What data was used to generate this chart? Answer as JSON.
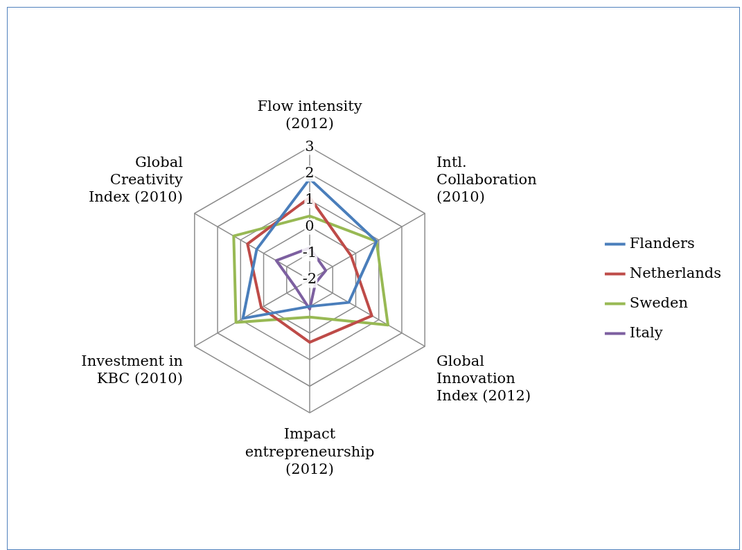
{
  "chart_data": {
    "type": "radar",
    "categories": [
      "Flow intensity (2012)",
      "Intl. Collaboration (2010)",
      "Global Innovation Index (2012)",
      "Impact entrepreneurship (2012)",
      "Investment in KBC (2010)",
      "Global Creativity Index (2010)"
    ],
    "series": [
      {
        "name": "Flanders",
        "color": "#4a7ebb",
        "values": [
          1.8,
          0.9,
          -0.3,
          -1.0,
          0.9,
          0.3
        ]
      },
      {
        "name": "Netherlands",
        "color": "#be4b48",
        "values": [
          1.1,
          -0.2,
          0.7,
          0.35,
          0.1,
          0.7
        ]
      },
      {
        "name": "Sweden",
        "color": "#98b954",
        "values": [
          0.4,
          0.9,
          1.4,
          -0.6,
          1.2,
          1.3
        ]
      },
      {
        "name": "Italy",
        "color": "#7d60a0",
        "values": [
          -0.8,
          -1.3,
          -1.75,
          -0.9,
          -1.4,
          -0.55
        ]
      }
    ],
    "ylim": [
      -2,
      3
    ],
    "yticks": [
      -2,
      -1,
      0,
      1,
      2,
      3
    ],
    "grid": true,
    "legend": "right",
    "marker": "none",
    "line_style": "solid"
  }
}
